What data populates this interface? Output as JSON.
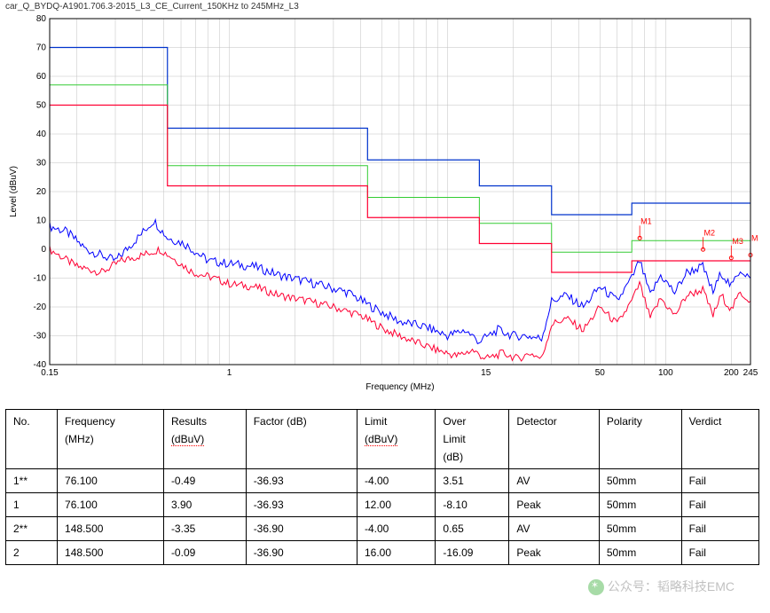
{
  "chart": {
    "title": "car_Q_BYDQ-A1901.706.3-2015_L3_CE_Current_150KHz to 245MHz_L3",
    "type": "line",
    "xlabel": "Frequency (MHz)",
    "ylabel": "Level (dBuV)",
    "title_color": "#333333",
    "axis_font_size": 10,
    "label_font_size": 10,
    "xscale": "log",
    "xlim": [
      0.15,
      245
    ],
    "ylim": [
      -40,
      80
    ],
    "xticks": [
      0.15,
      1,
      15,
      50,
      100,
      200,
      245
    ],
    "xtick_labels": [
      "0.15",
      "1",
      "15",
      "50",
      "100",
      "200",
      "245"
    ],
    "yticks": [
      -40,
      -30,
      -20,
      -10,
      0,
      10,
      20,
      30,
      40,
      50,
      60,
      70,
      80
    ],
    "background_color": "#ffffff",
    "grid_color": "#c0c0c0",
    "axis_color": "#000000",
    "limit_lines": {
      "blue": {
        "color": "#0033cc",
        "width": 1.2,
        "steps": [
          [
            0.15,
            70
          ],
          [
            0.52,
            70
          ],
          [
            0.52,
            42
          ],
          [
            4.3,
            42
          ],
          [
            4.3,
            31
          ],
          [
            14,
            31
          ],
          [
            14,
            22
          ],
          [
            30,
            22
          ],
          [
            30,
            12
          ],
          [
            70,
            12
          ],
          [
            70,
            16
          ],
          [
            245,
            16
          ]
        ]
      },
      "green": {
        "color": "#33cc33",
        "width": 1.0,
        "steps": [
          [
            0.15,
            57
          ],
          [
            0.52,
            57
          ],
          [
            0.52,
            29
          ],
          [
            4.3,
            29
          ],
          [
            4.3,
            18
          ],
          [
            14,
            18
          ],
          [
            14,
            9
          ],
          [
            30,
            9
          ],
          [
            30,
            -1
          ],
          [
            70,
            -1
          ],
          [
            70,
            3
          ],
          [
            245,
            3
          ]
        ]
      },
      "red": {
        "color": "#ff0033",
        "width": 1.2,
        "steps": [
          [
            0.15,
            50
          ],
          [
            0.52,
            50
          ],
          [
            0.52,
            28
          ],
          [
            0.52,
            22
          ],
          [
            4.3,
            22
          ],
          [
            4.3,
            11
          ],
          [
            14,
            11
          ],
          [
            14,
            2
          ],
          [
            30,
            2
          ],
          [
            30,
            -8
          ],
          [
            70,
            -8
          ],
          [
            70,
            -4
          ],
          [
            245,
            -4
          ]
        ]
      }
    },
    "traces": {
      "peak": {
        "color": "#0000ff",
        "width": 1.0,
        "jitter": 3.2,
        "pts": [
          [
            0.15,
            8
          ],
          [
            0.18,
            6
          ],
          [
            0.22,
            0
          ],
          [
            0.3,
            -4
          ],
          [
            0.38,
            4
          ],
          [
            0.45,
            10
          ],
          [
            0.52,
            4
          ],
          [
            0.62,
            2
          ],
          [
            0.8,
            -4
          ],
          [
            1.0,
            -5
          ],
          [
            1.3,
            -6
          ],
          [
            1.7,
            -9
          ],
          [
            2.2,
            -11
          ],
          [
            2.8,
            -13
          ],
          [
            3.5,
            -15
          ],
          [
            4.5,
            -20
          ],
          [
            6,
            -25
          ],
          [
            8,
            -27
          ],
          [
            10,
            -30
          ],
          [
            12,
            -28
          ],
          [
            14,
            -32
          ],
          [
            17,
            -28
          ],
          [
            20,
            -30
          ],
          [
            23,
            -30
          ],
          [
            27,
            -31
          ],
          [
            30,
            -18
          ],
          [
            35,
            -16
          ],
          [
            42,
            -20
          ],
          [
            50,
            -13
          ],
          [
            60,
            -18
          ],
          [
            70,
            -10
          ],
          [
            76,
            -4
          ],
          [
            85,
            -16
          ],
          [
            95,
            -9
          ],
          [
            110,
            -15
          ],
          [
            125,
            -8
          ],
          [
            148,
            -6
          ],
          [
            165,
            -15
          ],
          [
            180,
            -8
          ],
          [
            200,
            -13
          ],
          [
            220,
            -7
          ],
          [
            245,
            -10
          ]
        ]
      },
      "avg": {
        "color": "#ff0033",
        "width": 1.0,
        "jitter": 2.8,
        "pts": [
          [
            0.15,
            0
          ],
          [
            0.2,
            -6
          ],
          [
            0.26,
            -8
          ],
          [
            0.32,
            -4
          ],
          [
            0.4,
            -2
          ],
          [
            0.48,
            0
          ],
          [
            0.55,
            -3
          ],
          [
            0.68,
            -8
          ],
          [
            0.85,
            -10
          ],
          [
            1.0,
            -12
          ],
          [
            1.3,
            -13
          ],
          [
            1.7,
            -16
          ],
          [
            2.3,
            -18
          ],
          [
            3.0,
            -20
          ],
          [
            4.0,
            -23
          ],
          [
            5.2,
            -28
          ],
          [
            7,
            -32
          ],
          [
            9,
            -35
          ],
          [
            11,
            -37
          ],
          [
            13,
            -35
          ],
          [
            15,
            -38
          ],
          [
            18,
            -36
          ],
          [
            21,
            -38
          ],
          [
            24,
            -36
          ],
          [
            27,
            -38
          ],
          [
            30,
            -26
          ],
          [
            35,
            -24
          ],
          [
            42,
            -28
          ],
          [
            50,
            -20
          ],
          [
            60,
            -26
          ],
          [
            70,
            -18
          ],
          [
            76,
            -12
          ],
          [
            85,
            -24
          ],
          [
            95,
            -17
          ],
          [
            110,
            -23
          ],
          [
            125,
            -16
          ],
          [
            148,
            -14
          ],
          [
            165,
            -23
          ],
          [
            180,
            -16
          ],
          [
            200,
            -21
          ],
          [
            220,
            -15
          ],
          [
            245,
            -18
          ]
        ]
      }
    },
    "markers": [
      {
        "label": "M1",
        "x": 76.1,
        "y": 3.9,
        "color": "#ff0000"
      },
      {
        "label": "M2",
        "x": 148.5,
        "y": -0.09,
        "color": "#ff0000"
      },
      {
        "label": "M3",
        "x": 200,
        "y": -3,
        "color": "#ff0000"
      },
      {
        "label": "M",
        "x": 245,
        "y": -2,
        "color": "#ff0000"
      }
    ]
  },
  "table": {
    "columns": [
      {
        "l1": "No.",
        "l2": ""
      },
      {
        "l1": "Frequency",
        "l2": "(MHz)"
      },
      {
        "l1": "Results",
        "l2": "(dBuV)",
        "l2_underlined": true
      },
      {
        "l1": "Factor (dB)",
        "l2": ""
      },
      {
        "l1": "Limit",
        "l2": "(dBuV)",
        "l2_underlined": true
      },
      {
        "l1": "Over",
        "l2": "Limit",
        "l3": "(dB)"
      },
      {
        "l1": "Detector",
        "l2": ""
      },
      {
        "l1": "Polarity",
        "l2": ""
      },
      {
        "l1": "Verdict",
        "l2": ""
      }
    ],
    "rows": [
      [
        "1**",
        "76.100",
        "-0.49",
        "-36.93",
        "-4.00",
        "3.51",
        "AV",
        "50mm",
        "Fail"
      ],
      [
        "1",
        "76.100",
        "3.90",
        "-36.93",
        "12.00",
        "-8.10",
        "Peak",
        "50mm",
        "Fail"
      ],
      [
        "2**",
        "148.500",
        "-3.35",
        "-36.90",
        "-4.00",
        "0.65",
        "AV",
        "50mm",
        "Fail"
      ],
      [
        "2",
        "148.500",
        "-0.09",
        "-36.90",
        "16.00",
        "-16.09",
        "Peak",
        "50mm",
        "Fail"
      ]
    ]
  },
  "watermark": "公众号：韬略科技EMC"
}
